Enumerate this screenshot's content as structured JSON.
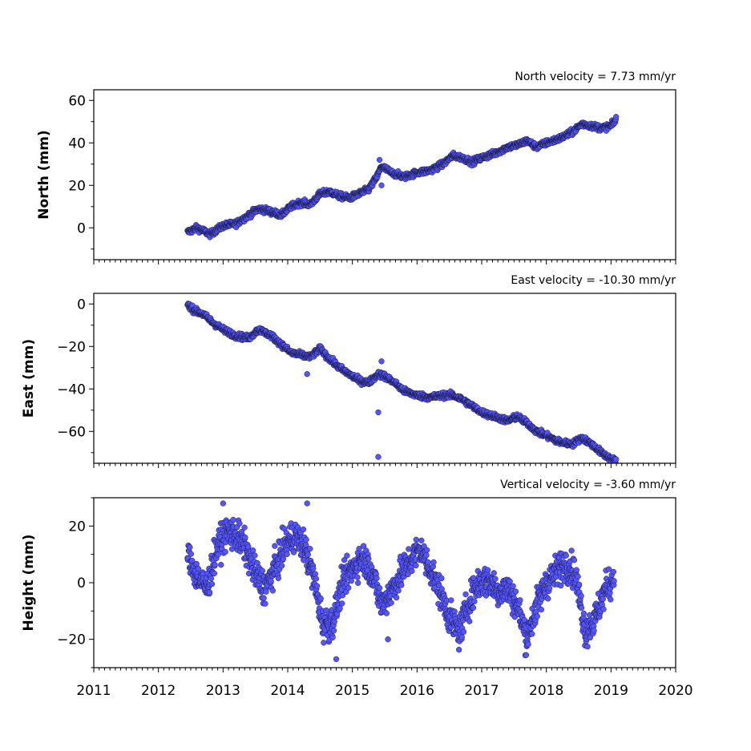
{
  "chart_data": [
    {
      "type": "scatter",
      "panel": "north",
      "title": "North velocity = 7.73 mm/yr",
      "ylabel": "North (mm)",
      "xlim": [
        2011,
        2020
      ],
      "ylim": [
        -15,
        65
      ],
      "yticks": [
        0,
        20,
        40,
        60
      ],
      "xticks": [
        2011,
        2012,
        2013,
        2014,
        2015,
        2016,
        2017,
        2018,
        2019,
        2020
      ],
      "xtick_labels_shown": false,
      "marker_color": "#5555ff",
      "series": [
        {
          "x": [
            2012.45,
            2012.6,
            2012.8,
            2013.0,
            2013.2,
            2013.4,
            2013.55,
            2013.7,
            2013.9,
            2014.05,
            2014.2,
            2014.35,
            2014.5,
            2014.65,
            2014.8,
            2014.95,
            2015.1,
            2015.25,
            2015.38,
            2015.45,
            2015.6,
            2015.8,
            2016.0,
            2016.2,
            2016.4,
            2016.55,
            2016.7,
            2016.85,
            2017.0,
            2017.2,
            2017.4,
            2017.55,
            2017.7,
            2017.85,
            2018.0,
            2018.2,
            2018.4,
            2018.55,
            2018.7,
            2018.85,
            2019.0,
            2019.08
          ],
          "y": [
            -2,
            0,
            -3,
            1,
            2,
            6,
            9,
            8,
            6,
            10,
            12,
            11,
            16,
            17,
            15,
            14,
            16,
            18,
            24,
            29,
            26,
            24,
            26,
            27,
            30,
            34,
            33,
            31,
            33,
            35,
            38,
            39,
            41,
            38,
            40,
            42,
            45,
            49,
            48,
            47,
            48,
            51
          ]
        }
      ],
      "outliers": {
        "x": [
          2015.42,
          2015.45
        ],
        "y": [
          32,
          20
        ]
      }
    },
    {
      "type": "scatter",
      "panel": "east",
      "title": "East velocity = -10.30 mm/yr",
      "ylabel": "East (mm)",
      "xlim": [
        2011,
        2020
      ],
      "ylim": [
        -75,
        5
      ],
      "yticks": [
        0,
        -20,
        -40,
        -60
      ],
      "xticks": [
        2011,
        2012,
        2013,
        2014,
        2015,
        2016,
        2017,
        2018,
        2019,
        2020
      ],
      "xtick_labels_shown": false,
      "marker_color": "#5555ff",
      "series": [
        {
          "x": [
            2012.45,
            2012.55,
            2012.7,
            2012.85,
            2013.0,
            2013.2,
            2013.4,
            2013.55,
            2013.75,
            2013.9,
            2014.05,
            2014.2,
            2014.35,
            2014.5,
            2014.65,
            2014.8,
            2014.95,
            2015.1,
            2015.25,
            2015.4,
            2015.5,
            2015.65,
            2015.8,
            2016.0,
            2016.2,
            2016.4,
            2016.55,
            2016.7,
            2016.85,
            2017.0,
            2017.2,
            2017.4,
            2017.55,
            2017.7,
            2017.85,
            2018.0,
            2018.2,
            2018.4,
            2018.55,
            2018.7,
            2018.85,
            2019.0,
            2019.08
          ],
          "y": [
            0,
            -3,
            -5,
            -9,
            -12,
            -15,
            -16,
            -12,
            -15,
            -19,
            -23,
            -24,
            -25,
            -21,
            -26,
            -30,
            -33,
            -36,
            -37,
            -33,
            -34,
            -37,
            -41,
            -43,
            -44,
            -43,
            -43,
            -45,
            -48,
            -51,
            -53,
            -55,
            -53,
            -56,
            -60,
            -62,
            -65,
            -66,
            -63,
            -66,
            -70,
            -73,
            -74
          ]
        }
      ],
      "outliers": {
        "x": [
          2015.4,
          2015.4,
          2015.45,
          2014.3
        ],
        "y": [
          -51,
          -72,
          -27,
          -33
        ]
      }
    },
    {
      "type": "scatter",
      "panel": "vertical",
      "title": "Vertical velocity = -3.60 mm/yr",
      "ylabel": "Height (mm)",
      "xlim": [
        2011,
        2020
      ],
      "ylim": [
        -30,
        30
      ],
      "yticks": [
        20,
        0,
        -20
      ],
      "xticks": [
        2011,
        2012,
        2013,
        2014,
        2015,
        2016,
        2017,
        2018,
        2019,
        2020
      ],
      "xtick_labels": [
        "2011",
        "2012",
        "2013",
        "2014",
        "2015",
        "2016",
        "2017",
        "2018",
        "2019",
        "2020"
      ],
      "marker_color": "#5555ff",
      "series": [
        {
          "x": [
            2012.45,
            2012.6,
            2012.75,
            2012.9,
            2013.05,
            2013.2,
            2013.35,
            2013.5,
            2013.65,
            2013.8,
            2013.95,
            2014.1,
            2014.25,
            2014.4,
            2014.55,
            2014.7,
            2014.85,
            2015.0,
            2015.15,
            2015.3,
            2015.45,
            2015.6,
            2015.75,
            2015.9,
            2016.05,
            2016.2,
            2016.35,
            2016.5,
            2016.65,
            2016.8,
            2016.95,
            2017.1,
            2017.25,
            2017.4,
            2017.55,
            2017.7,
            2017.85,
            2018.0,
            2018.15,
            2018.3,
            2018.45,
            2018.6,
            2018.75,
            2018.9,
            2019.05
          ],
          "y": [
            10,
            2,
            -2,
            12,
            18,
            17,
            12,
            3,
            -2,
            5,
            13,
            17,
            13,
            2,
            -15,
            -14,
            0,
            5,
            9,
            4,
            -8,
            -3,
            3,
            8,
            12,
            5,
            -3,
            -12,
            -18,
            -7,
            0,
            1,
            -3,
            -2,
            -8,
            -20,
            -8,
            0,
            4,
            7,
            3,
            -17,
            -13,
            -3,
            2
          ]
        }
      ],
      "outliers": {
        "x": [
          2013.0,
          2014.3,
          2014.75,
          2015.55
        ],
        "y": [
          28,
          28,
          -27,
          -20
        ]
      }
    }
  ]
}
